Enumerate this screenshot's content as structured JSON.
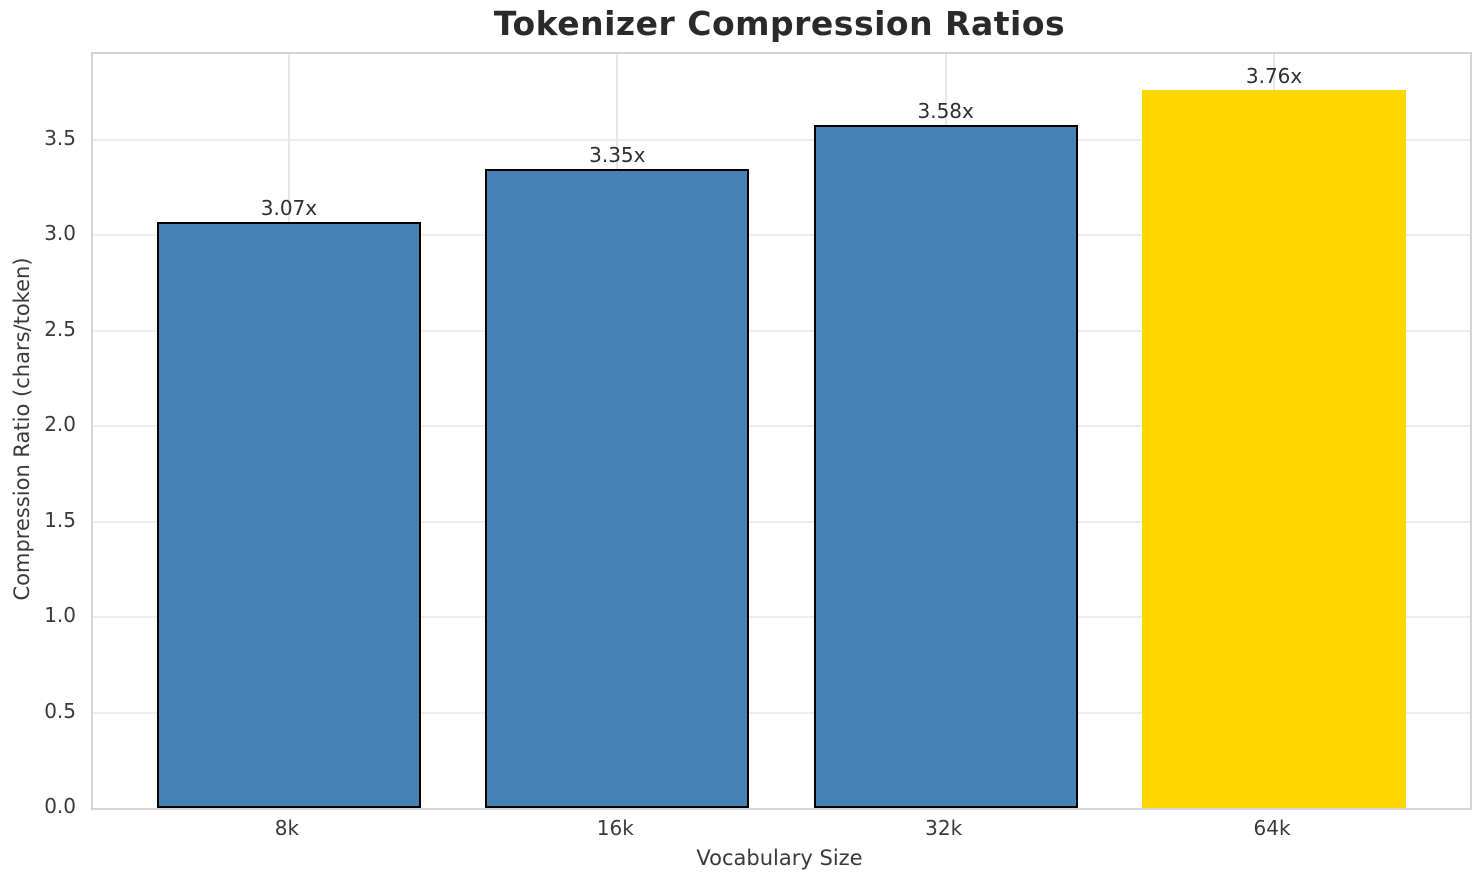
{
  "chart_data": {
    "type": "bar",
    "title": "Tokenizer Compression Ratios",
    "xlabel": "Vocabulary Size",
    "ylabel": "Compression Ratio (chars/token)",
    "categories": [
      "8k",
      "16k",
      "32k",
      "64k"
    ],
    "values": [
      3.07,
      3.35,
      3.58,
      3.76
    ],
    "bar_labels": [
      "3.07x",
      "3.35x",
      "3.58x",
      "3.76x"
    ],
    "bar_colors": [
      "#4682B4",
      "#4682B4",
      "#4682B4",
      "#FFD700"
    ],
    "bar_edge_colors": [
      "#000000",
      "#000000",
      "#000000",
      "none"
    ],
    "ylim": [
      0,
      3.95
    ],
    "yticks": [
      0.0,
      0.5,
      1.0,
      1.5,
      2.0,
      2.5,
      3.0,
      3.5
    ],
    "ytick_labels": [
      "0.0",
      "0.5",
      "1.0",
      "1.5",
      "2.0",
      "2.5",
      "3.0",
      "3.5"
    ],
    "grid": true,
    "legend": "none",
    "highlight_category": "64k",
    "colors": {
      "default_bar": "#4682B4",
      "highlight_bar": "#FFD700",
      "bar_edge": "#000000",
      "gridline": "#ececec",
      "spine": "#d4d4d4",
      "text": "#2f2f2f"
    }
  }
}
